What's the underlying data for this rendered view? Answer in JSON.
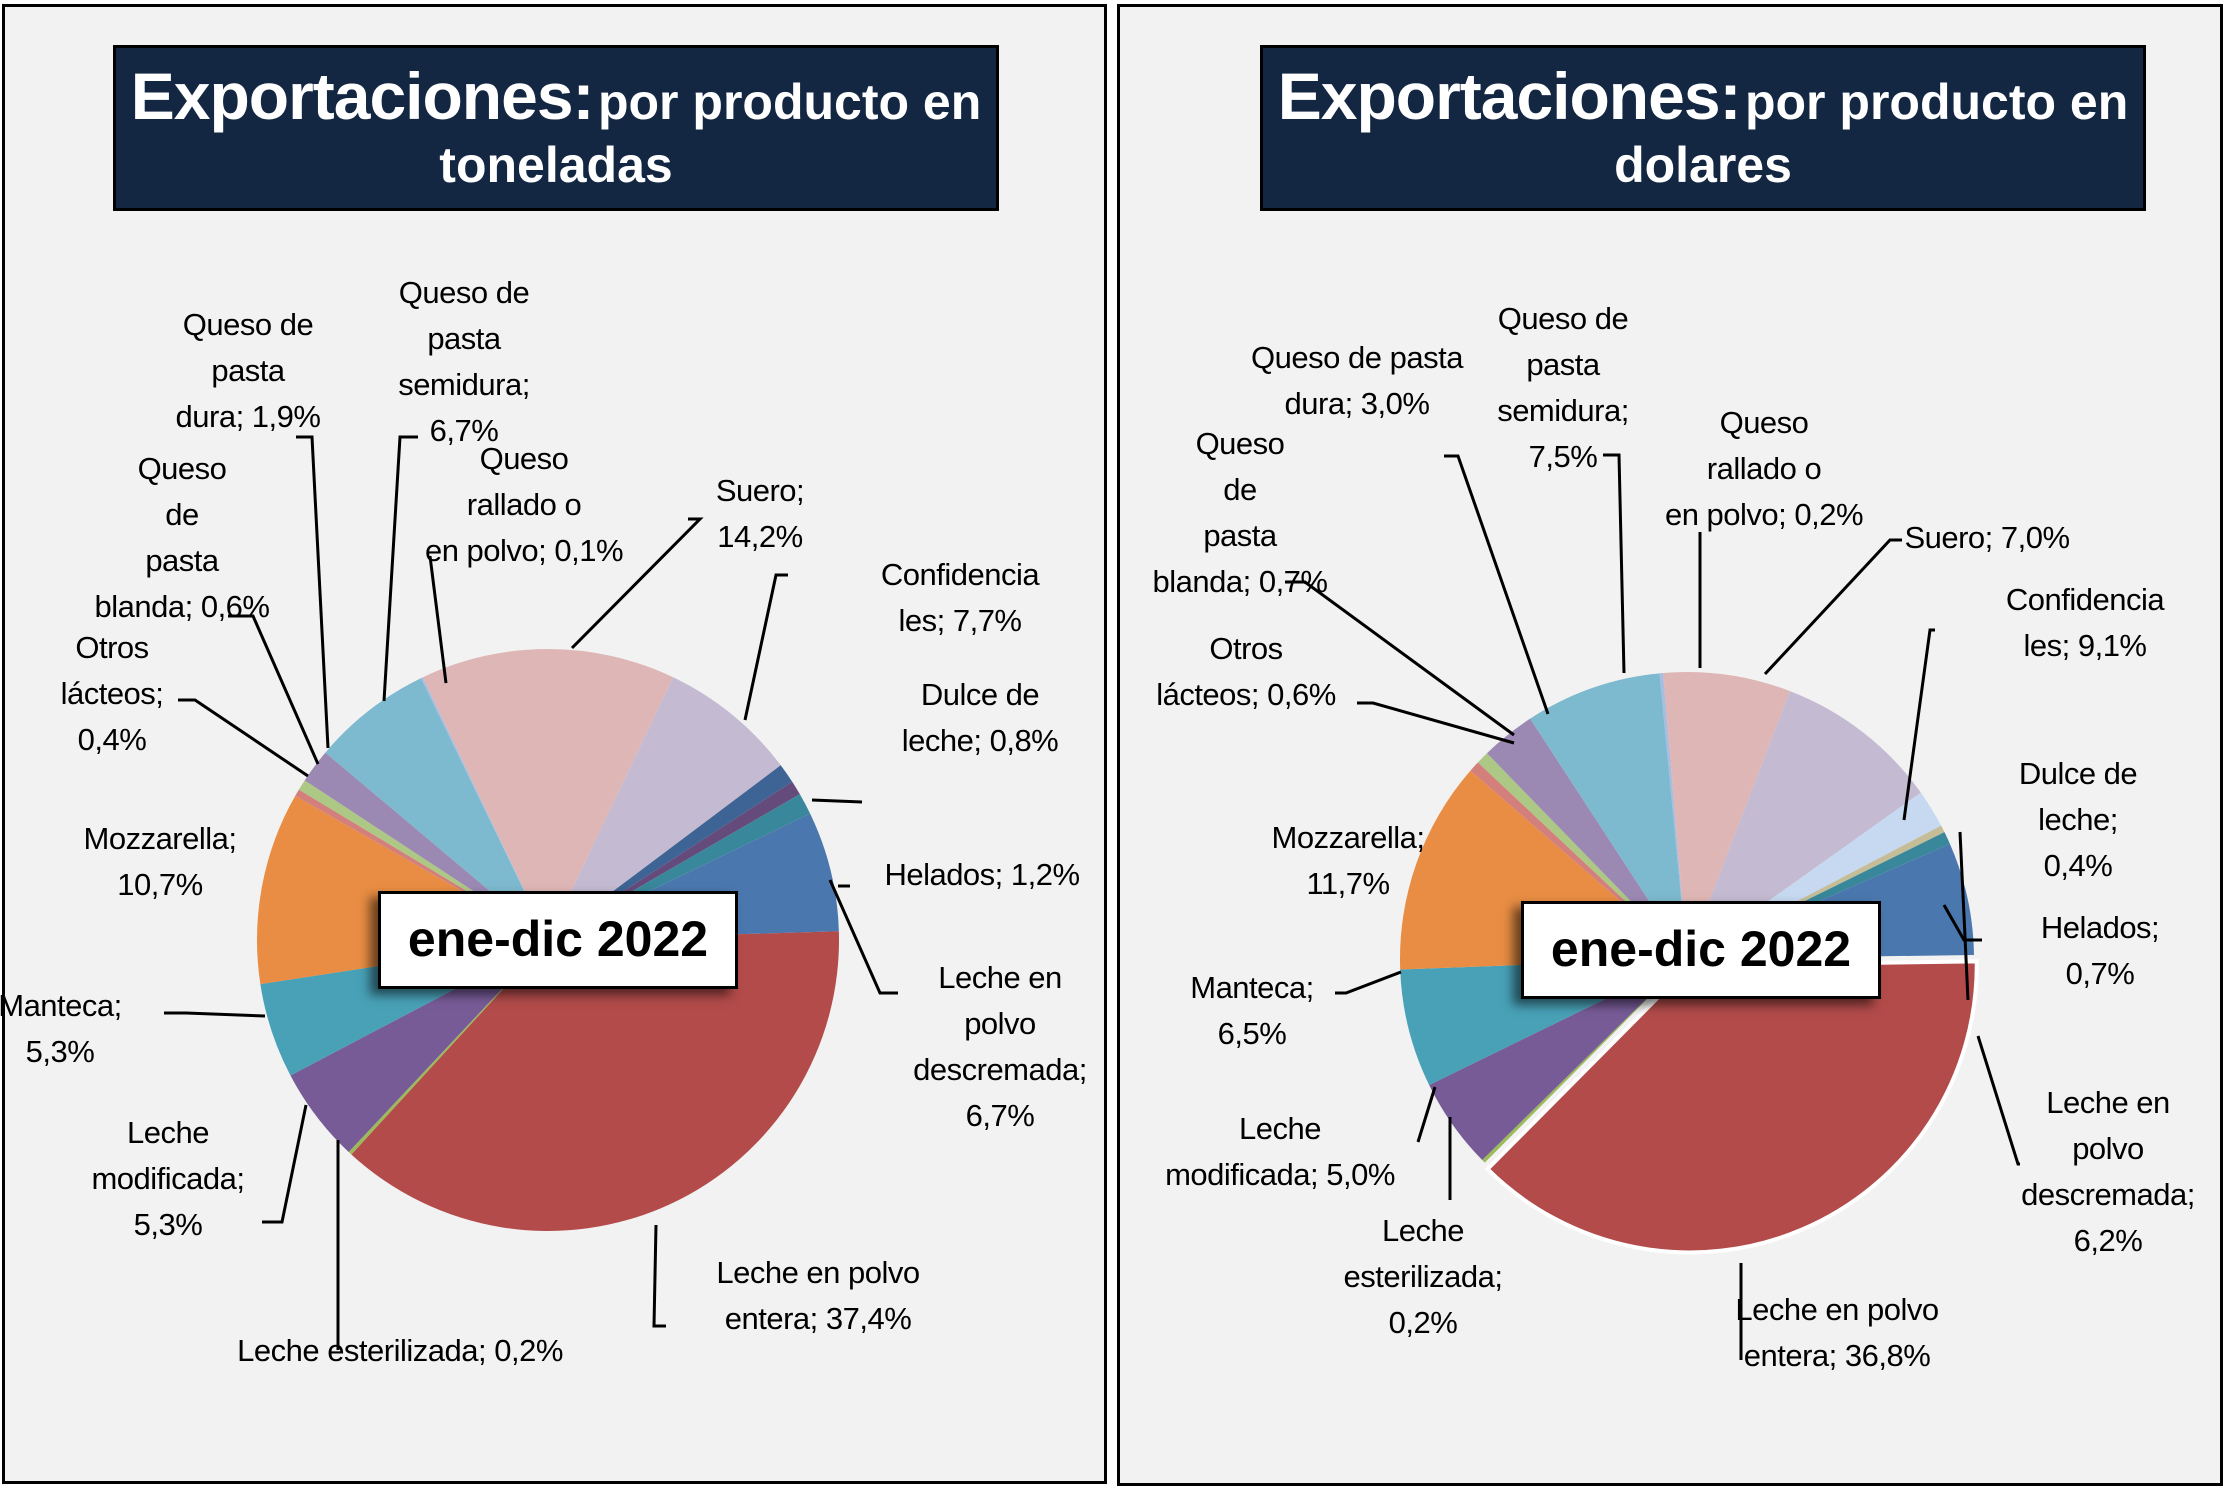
{
  "charts": [
    {
      "title_bold": "Exportaciones:",
      "title_rest": "por producto en toneladas",
      "period": "ene-dic 2022"
    },
    {
      "title_bold": "Exportaciones:",
      "title_rest": "por producto en dolares",
      "period": "ene-dic 2022"
    }
  ],
  "chart_data": [
    {
      "type": "pie",
      "title": "Exportaciones: por producto en toneladas",
      "annotation": "ene-dic 2022",
      "unit": "%",
      "slices": [
        {
          "label": "Suero; 14,2%",
          "name": "Suero",
          "value": 14.2,
          "color": "#deb6b5"
        },
        {
          "label": "Confidencia les; 7,7%",
          "name": "Confidencia les",
          "value": 7.7,
          "color": "#c4bad1"
        },
        {
          "label": "",
          "name": "Sin etiqueta",
          "value": 1.1,
          "color": "#3d6494"
        },
        {
          "label": "Dulce de leche; 0,8%",
          "name": "Dulce de leche",
          "value": 0.8,
          "color": "#654b7c"
        },
        {
          "label": "Helados; 1,2%",
          "name": "Helados",
          "value": 1.2,
          "color": "#38879a"
        },
        {
          "label": "Leche en polvo descremada; 6,7%",
          "name": "Leche en polvo descremada",
          "value": 6.7,
          "color": "#4a77ae"
        },
        {
          "label": "Leche en polvo entera; 37,4%",
          "name": "Leche en polvo entera",
          "value": 37.4,
          "color": "#b24b4a"
        },
        {
          "label": "Leche esterilizada; 0,2%",
          "name": "Leche esterilizada",
          "value": 0.2,
          "color": "#9bbb59"
        },
        {
          "label": "Leche modificada; 5,3%",
          "name": "Leche modificada",
          "value": 5.3,
          "color": "#775b97"
        },
        {
          "label": "Manteca; 5,3%",
          "name": "Manteca",
          "value": 5.3,
          "color": "#48a1b7"
        },
        {
          "label": "Mozzarella; 10,7%",
          "name": "Mozzarella",
          "value": 10.7,
          "color": "#e88d43"
        },
        {
          "label": "Otros lácteos; 0,4%",
          "name": "Otros lácteos",
          "value": 0.4,
          "color": "#d3807d"
        },
        {
          "label": "Queso de pasta blanda; 0,6%",
          "name": "Queso de pasta blanda",
          "value": 0.6,
          "color": "#adc784"
        },
        {
          "label": "Queso de pasta dura; 1,9%",
          "name": "Queso de pasta dura",
          "value": 1.9,
          "color": "#9b89b3"
        },
        {
          "label": "Queso de pasta semidura; 6,7%",
          "name": "Queso de pasta semidura",
          "value": 6.7,
          "color": "#7db9cf"
        },
        {
          "label": "Queso rallado o en polvo; 0,1%",
          "name": "Queso rallado o en polvo",
          "value": 0.1,
          "color": "#a9bde0"
        }
      ]
    },
    {
      "type": "pie",
      "title": "Exportaciones: por producto en dolares",
      "annotation": "ene-dic 2022",
      "unit": "%",
      "slices": [
        {
          "label": "Queso rallado o en polvo; 0,2%",
          "name": "Queso rallado o en polvo",
          "value": 0.2,
          "color": "#a9bde0"
        },
        {
          "label": "Suero; 7,0%",
          "name": "Suero",
          "value": 7.0,
          "color": "#deb6b5"
        },
        {
          "label": "Confidencia les; 9,1%",
          "name": "Confidencia les",
          "value": 9.1,
          "color": "#c4bad1"
        },
        {
          "label": "",
          "name": "Sin etiqueta",
          "value": 2.1,
          "color": "#c6d9f0"
        },
        {
          "label": "Dulce de leche; 0,4%",
          "name": "Dulce de leche",
          "value": 0.4,
          "color": "#c4bd97"
        },
        {
          "label": "Helados; 0,7%",
          "name": "Helados",
          "value": 0.7,
          "color": "#38879a"
        },
        {
          "label": "Leche en polvo descremada; 6,2%",
          "name": "Leche en polvo descremada",
          "value": 6.2,
          "color": "#4a77ae"
        },
        {
          "label": "Leche en polvo entera; 36,8%",
          "name": "Leche en polvo entera",
          "value": 36.8,
          "color": "#b24b4a",
          "exploded": true
        },
        {
          "label": "Leche esterilizada; 0,2%",
          "name": "Leche esterilizada",
          "value": 0.2,
          "color": "#9bbb59"
        },
        {
          "label": "Leche modificada; 5,0%",
          "name": "Leche modificada",
          "value": 5.0,
          "color": "#775b97"
        },
        {
          "label": "Manteca; 6,5%",
          "name": "Manteca",
          "value": 6.5,
          "color": "#48a1b7"
        },
        {
          "label": "Mozzarella; 11,7%",
          "name": "Mozzarella",
          "value": 11.7,
          "color": "#e88d43"
        },
        {
          "label": "Otros lácteos; 0,6%",
          "name": "Otros lácteos",
          "value": 0.6,
          "color": "#d3807d"
        },
        {
          "label": "Queso de pasta blanda; 0,7%",
          "name": "Queso de pasta blanda",
          "value": 0.7,
          "color": "#adc784"
        },
        {
          "label": "Queso de pasta dura; 3,0%",
          "name": "Queso de pasta dura",
          "value": 3.0,
          "color": "#9b89b3"
        },
        {
          "label": "Queso de pasta semidura; 7,5%",
          "name": "Queso de pasta semidura",
          "value": 7.5,
          "color": "#7db9cf"
        }
      ]
    }
  ]
}
